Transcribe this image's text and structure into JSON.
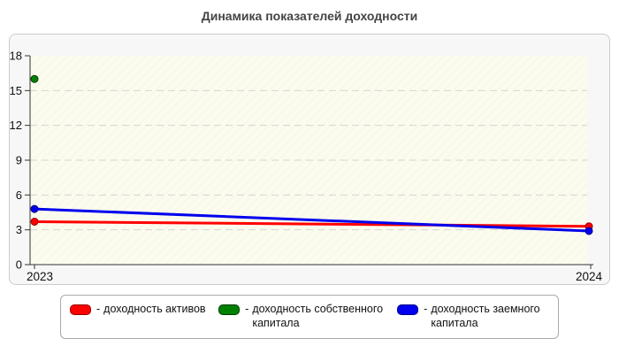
{
  "title": "Динамика показателей доходности",
  "legend": {
    "prefix": "-",
    "items": [
      {
        "label": "доходность активов",
        "color": "#ff0000",
        "border": "#990000"
      },
      {
        "label": "доходность собственного капитала",
        "color": "#008000",
        "border": "#003d00"
      },
      {
        "label": "доходность заемного капитала",
        "color": "#0000ee",
        "border": "#000088"
      }
    ]
  },
  "chart_data": {
    "type": "line",
    "title": "Динамика показателей доходности",
    "x_categories": [
      "2023",
      "2024"
    ],
    "y_ticks": [
      0,
      3,
      6,
      9,
      12,
      15,
      18
    ],
    "ylim": [
      0,
      18
    ],
    "grid_values": [
      3,
      6,
      9,
      12,
      15
    ],
    "grid_style": "dashed",
    "legend_position": "bottom",
    "series": [
      {
        "name": "доходность активов",
        "color": "#ff0000",
        "dot_border": "#990000",
        "values": [
          3.7,
          3.3
        ]
      },
      {
        "name": "доходность собственного капитала",
        "color": "#008000",
        "dot_border": "#003d00",
        "values": [
          16.0,
          null
        ]
      },
      {
        "name": "доходность заемного капитала",
        "color": "#0000ee",
        "dot_border": "#000088",
        "values": [
          4.8,
          2.9
        ]
      }
    ]
  },
  "colors": {
    "panel_bg": "#f7f7f7",
    "panel_border": "#cccccc",
    "plot_bg": "#fcfcee",
    "hatch": "#c9c9c9",
    "grid": "#d4d4d4",
    "axis": "#333333",
    "tick_text": "#111111",
    "title": "#444444",
    "legend_bg": "#ffffff",
    "legend_border": "#a9a9a9"
  }
}
